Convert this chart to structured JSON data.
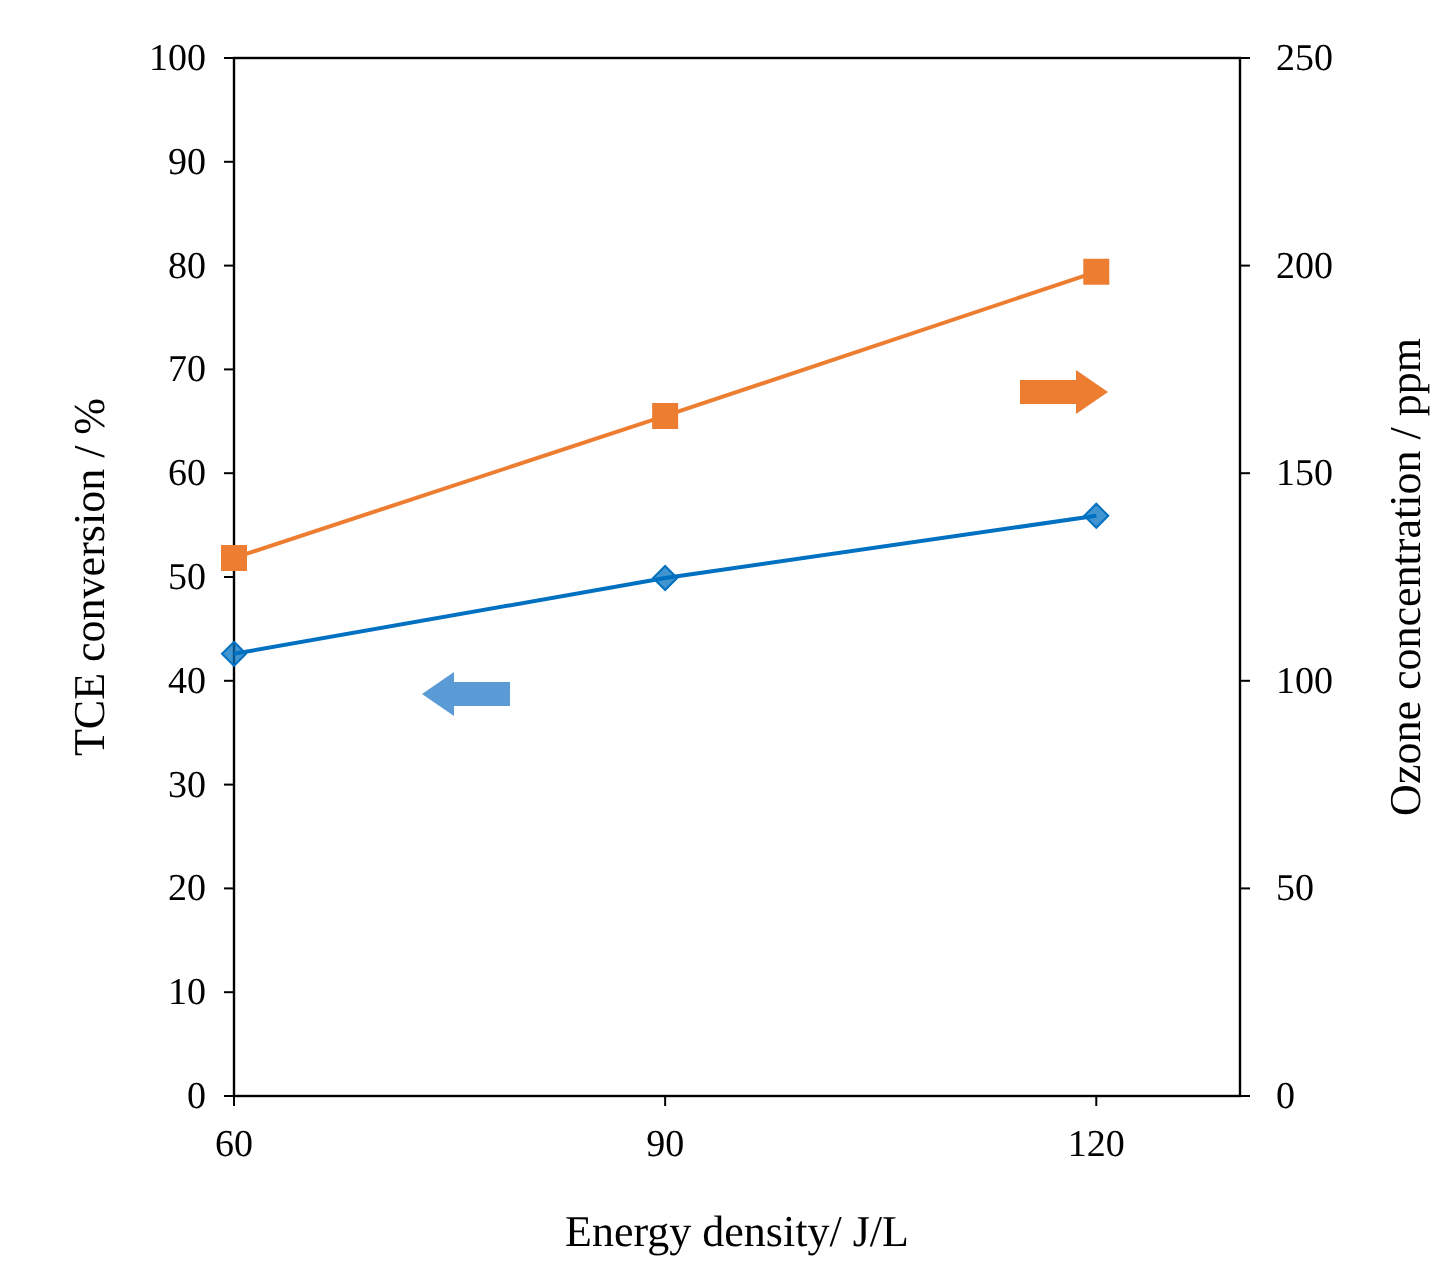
{
  "chart_data": {
    "type": "line",
    "xlabel": "Energy density/ J/L",
    "ylabel": "TCE conversion / %",
    "y2label": "Ozone concentration / ppm",
    "x": [
      60,
      90,
      120
    ],
    "xlim": [
      60,
      130
    ],
    "xticks": [
      60,
      90,
      120
    ],
    "ylim": [
      0,
      100
    ],
    "yticks": [
      0,
      10,
      20,
      30,
      40,
      50,
      60,
      70,
      80,
      90,
      100
    ],
    "y2lim": [
      0,
      250
    ],
    "y2ticks": [
      0,
      50,
      100,
      150,
      200,
      250
    ],
    "series": [
      {
        "color": "#0070c0",
        "values": [
          42.6,
          49.9,
          55.9
        ],
        "marker": "diamond"
      },
      {
        "color": "#ed7d31",
        "values": [
          129.6,
          163.8,
          198.5
        ],
        "marker": "square",
        "axis": "y2"
      }
    ],
    "grid": false,
    "line_style": "solid"
  }
}
